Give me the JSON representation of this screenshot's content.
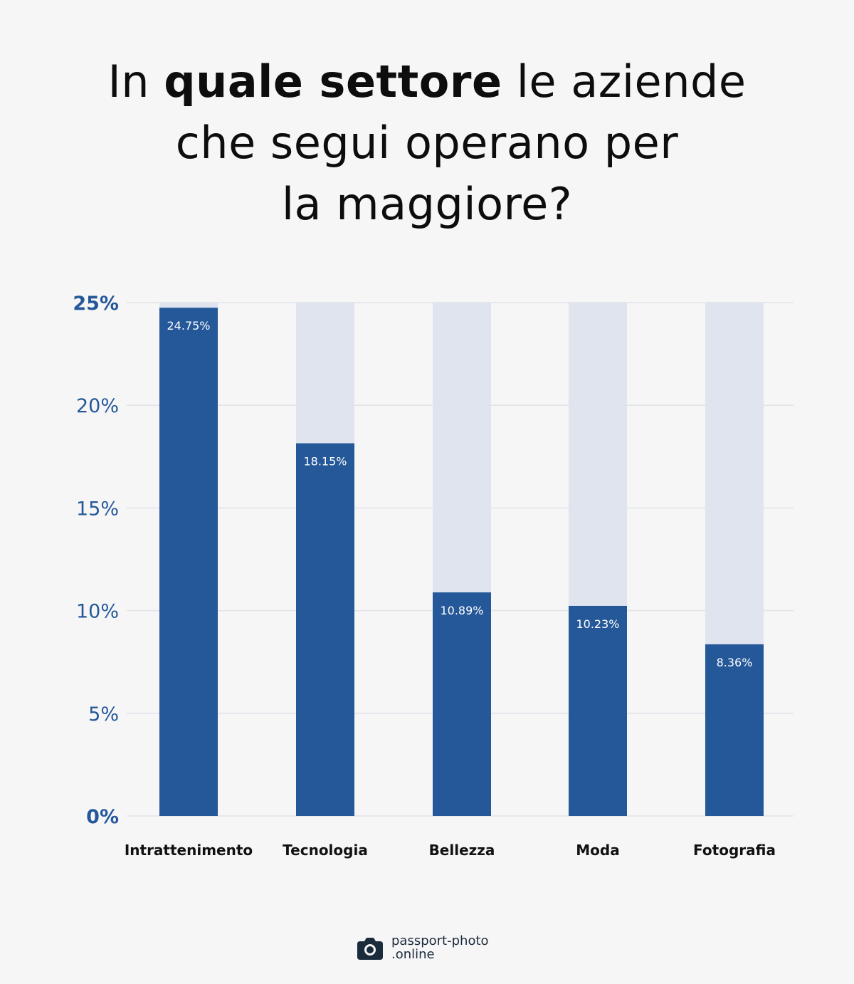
{
  "title": {
    "line1_pre": "In ",
    "line1_bold": "quale settore",
    "line1_post": " le aziende",
    "line2": "che segui operano per",
    "line3": "la maggiore?"
  },
  "colors": {
    "bar": "#255899",
    "bar_track": "#dfe4ef",
    "axis_label": "#255899",
    "gridline": "#e1e3e8",
    "category_label": "#111111",
    "value_label": "#ffffff"
  },
  "chart_data": {
    "type": "bar",
    "categories": [
      "Intrattenimento",
      "Tecnologia",
      "Bellezza",
      "Moda",
      "Fotografia"
    ],
    "values": [
      24.75,
      18.15,
      10.89,
      10.23,
      8.36
    ],
    "value_labels": [
      "24.75%",
      "18.15%",
      "10.89%",
      "10.23%",
      "8.36%"
    ],
    "yticks": [
      0,
      5,
      10,
      15,
      20,
      25
    ],
    "ytick_labels": [
      "0%",
      "5%",
      "10%",
      "15%",
      "20%",
      "25%"
    ],
    "ylim": [
      0,
      25
    ],
    "grid": true,
    "xlabel": "",
    "ylabel": ""
  },
  "logo": {
    "line1": "passport-photo",
    "line2": ".online",
    "icon": "camera-icon"
  }
}
